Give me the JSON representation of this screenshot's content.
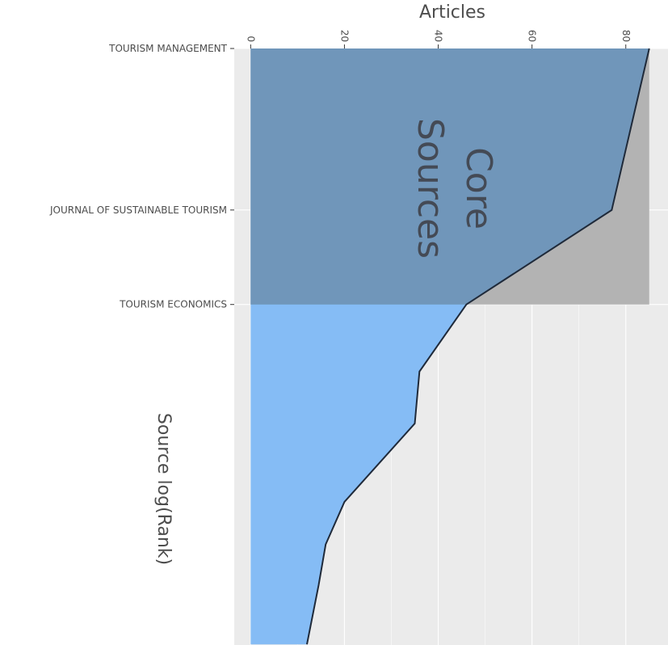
{
  "chart_data": {
    "type": "area",
    "title": "",
    "x_axis_title": "Articles",
    "y_axis_title": "Source log(Rank)",
    "x_ticks": [
      0,
      20,
      40,
      60,
      80
    ],
    "xlim": [
      -3.5,
      89
    ],
    "rank_log_range": [
      0,
      2.56
    ],
    "labeled_sources": [
      {
        "name": "TOURISM MANAGEMENT",
        "rank": 1
      },
      {
        "name": "JOURNAL OF SUSTAINABLE TOURISM",
        "rank": 2
      },
      {
        "name": "TOURISM ECONOMICS",
        "rank": 3
      }
    ],
    "core_region_label": "Core\nSources",
    "core_sources_count": 3,
    "series": [
      {
        "points": [
          {
            "rank": 1,
            "articles": 85
          },
          {
            "rank": 2,
            "articles": 77
          },
          {
            "rank": 3,
            "articles": 46
          },
          {
            "rank": 4,
            "articles": 36
          },
          {
            "rank": 5,
            "articles": 35
          },
          {
            "rank": 7,
            "articles": 20
          },
          {
            "rank": 8.4,
            "articles": 16
          },
          {
            "rank": 10,
            "articles": 14.5
          },
          {
            "rank": 12.9,
            "articles": 12
          }
        ]
      }
    ],
    "colors": {
      "core_fill": "#7096ba",
      "noncore_fill": "#85bcf5",
      "gray_fill": "#b3b3b3",
      "line": "#1f2a3a",
      "panel_bg": "#ebebeb",
      "grid": "#ffffff"
    }
  }
}
